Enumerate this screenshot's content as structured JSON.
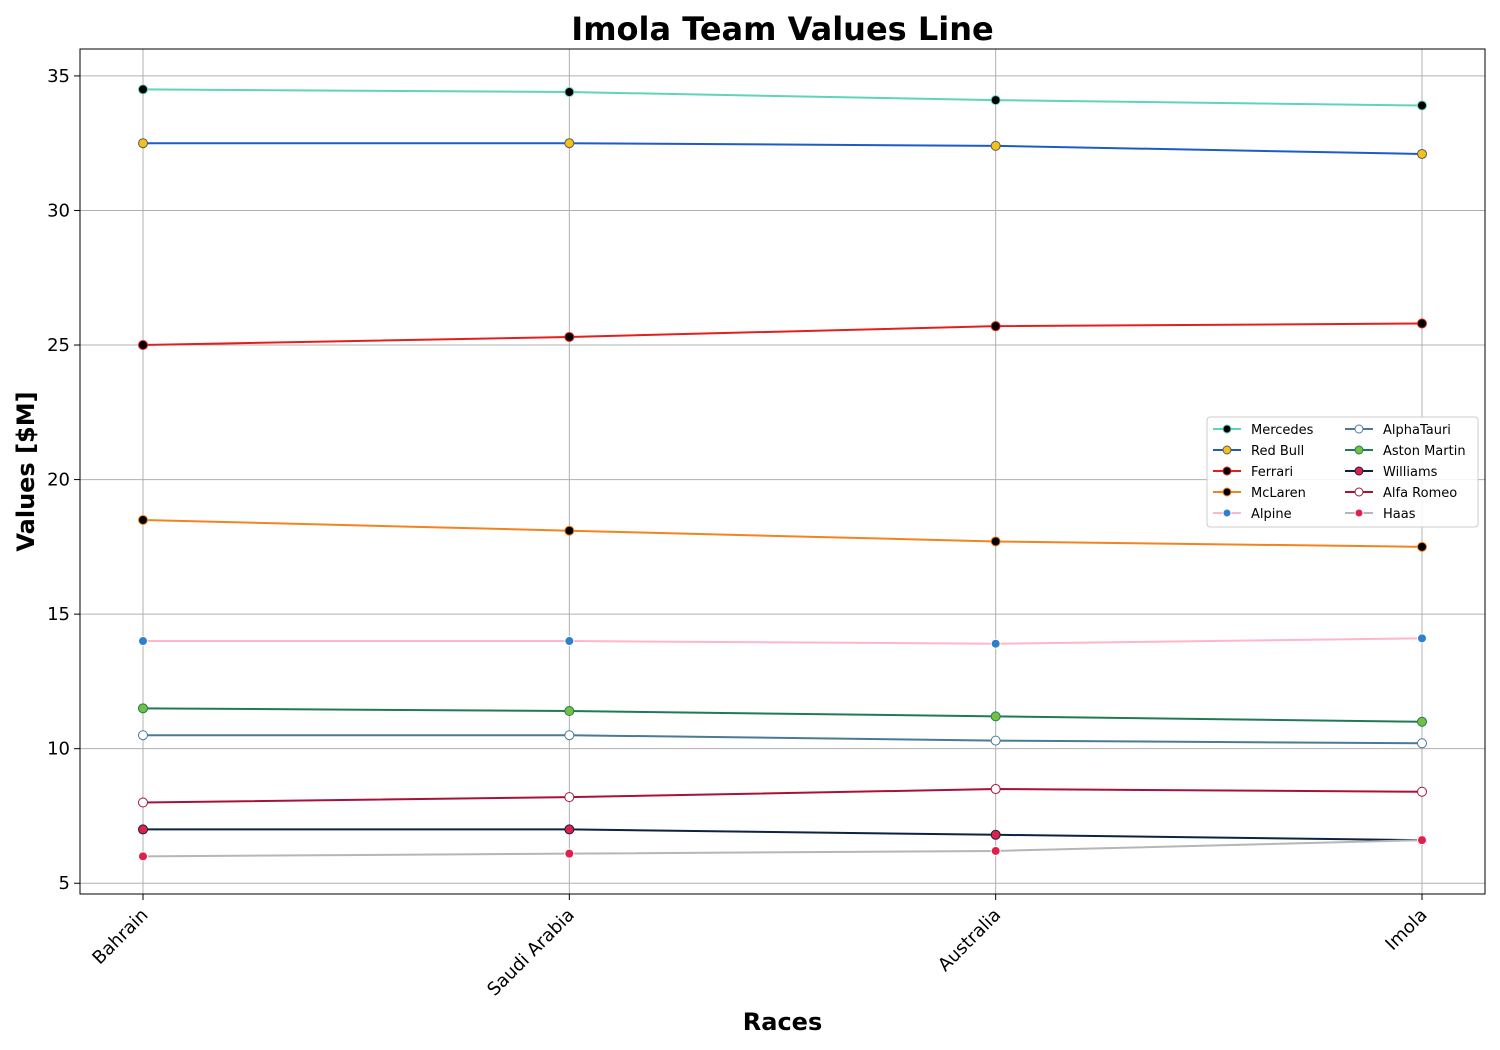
{
  "chart_data": {
    "type": "line",
    "title": "Imola Team Values Line",
    "xlabel": "Races",
    "ylabel": "Values [$M]",
    "categories": [
      "Bahrain",
      "Saudi Arabia",
      "Australia",
      "Imola"
    ],
    "ylim": [
      4.6,
      36
    ],
    "yticks": [
      5,
      10,
      15,
      20,
      25,
      30,
      35
    ],
    "grid": true,
    "legend_placement": "center-right",
    "legend_columns": 2,
    "series": [
      {
        "name": "Mercedes",
        "values": [
          34.5,
          34.4,
          34.1,
          33.9
        ],
        "color": "#5fd4b8",
        "marker_fill": "#000000",
        "marker_edge": "#5fd4b8"
      },
      {
        "name": "Red Bull",
        "values": [
          32.5,
          32.5,
          32.4,
          32.1
        ],
        "color": "#1f5bc6",
        "marker_fill": "#f2c21b",
        "marker_edge": "#5a5a5a"
      },
      {
        "name": "Ferrari",
        "values": [
          25.0,
          25.3,
          25.7,
          25.8
        ],
        "color": "#e41e1e",
        "marker_fill": "#000000",
        "marker_edge": "#e41e1e"
      },
      {
        "name": "McLaren",
        "values": [
          18.5,
          18.1,
          17.7,
          17.5
        ],
        "color": "#f58220",
        "marker_fill": "#000000",
        "marker_edge": "#f58220"
      },
      {
        "name": "Alpine",
        "values": [
          14.0,
          14.0,
          13.9,
          14.1
        ],
        "color": "#ffb6c8",
        "marker_fill": "#2f7fd0",
        "marker_edge": "#ffffff"
      },
      {
        "name": "AlphaTauri",
        "values": [
          10.5,
          10.5,
          10.3,
          10.2
        ],
        "color": "#4a7a96",
        "marker_fill": "#ffffff",
        "marker_edge": "#4a7a96"
      },
      {
        "name": "Aston Martin",
        "values": [
          11.5,
          11.4,
          11.2,
          11.0
        ],
        "color": "#227a55",
        "marker_fill": "#74c043",
        "marker_edge": "#227a55"
      },
      {
        "name": "Williams",
        "values": [
          7.0,
          7.0,
          6.8,
          6.6
        ],
        "color": "#0e2244",
        "marker_fill": "#e0204a",
        "marker_edge": "#0e2244"
      },
      {
        "name": "Alfa Romeo",
        "values": [
          8.0,
          8.2,
          8.5,
          8.4
        ],
        "color": "#a8123a",
        "marker_fill": "#ffffff",
        "marker_edge": "#a8123a"
      },
      {
        "name": "Haas",
        "values": [
          6.0,
          6.1,
          6.2,
          6.6
        ],
        "color": "#b6b6b6",
        "marker_fill": "#e0204a",
        "marker_edge": "#ffffff"
      }
    ]
  }
}
